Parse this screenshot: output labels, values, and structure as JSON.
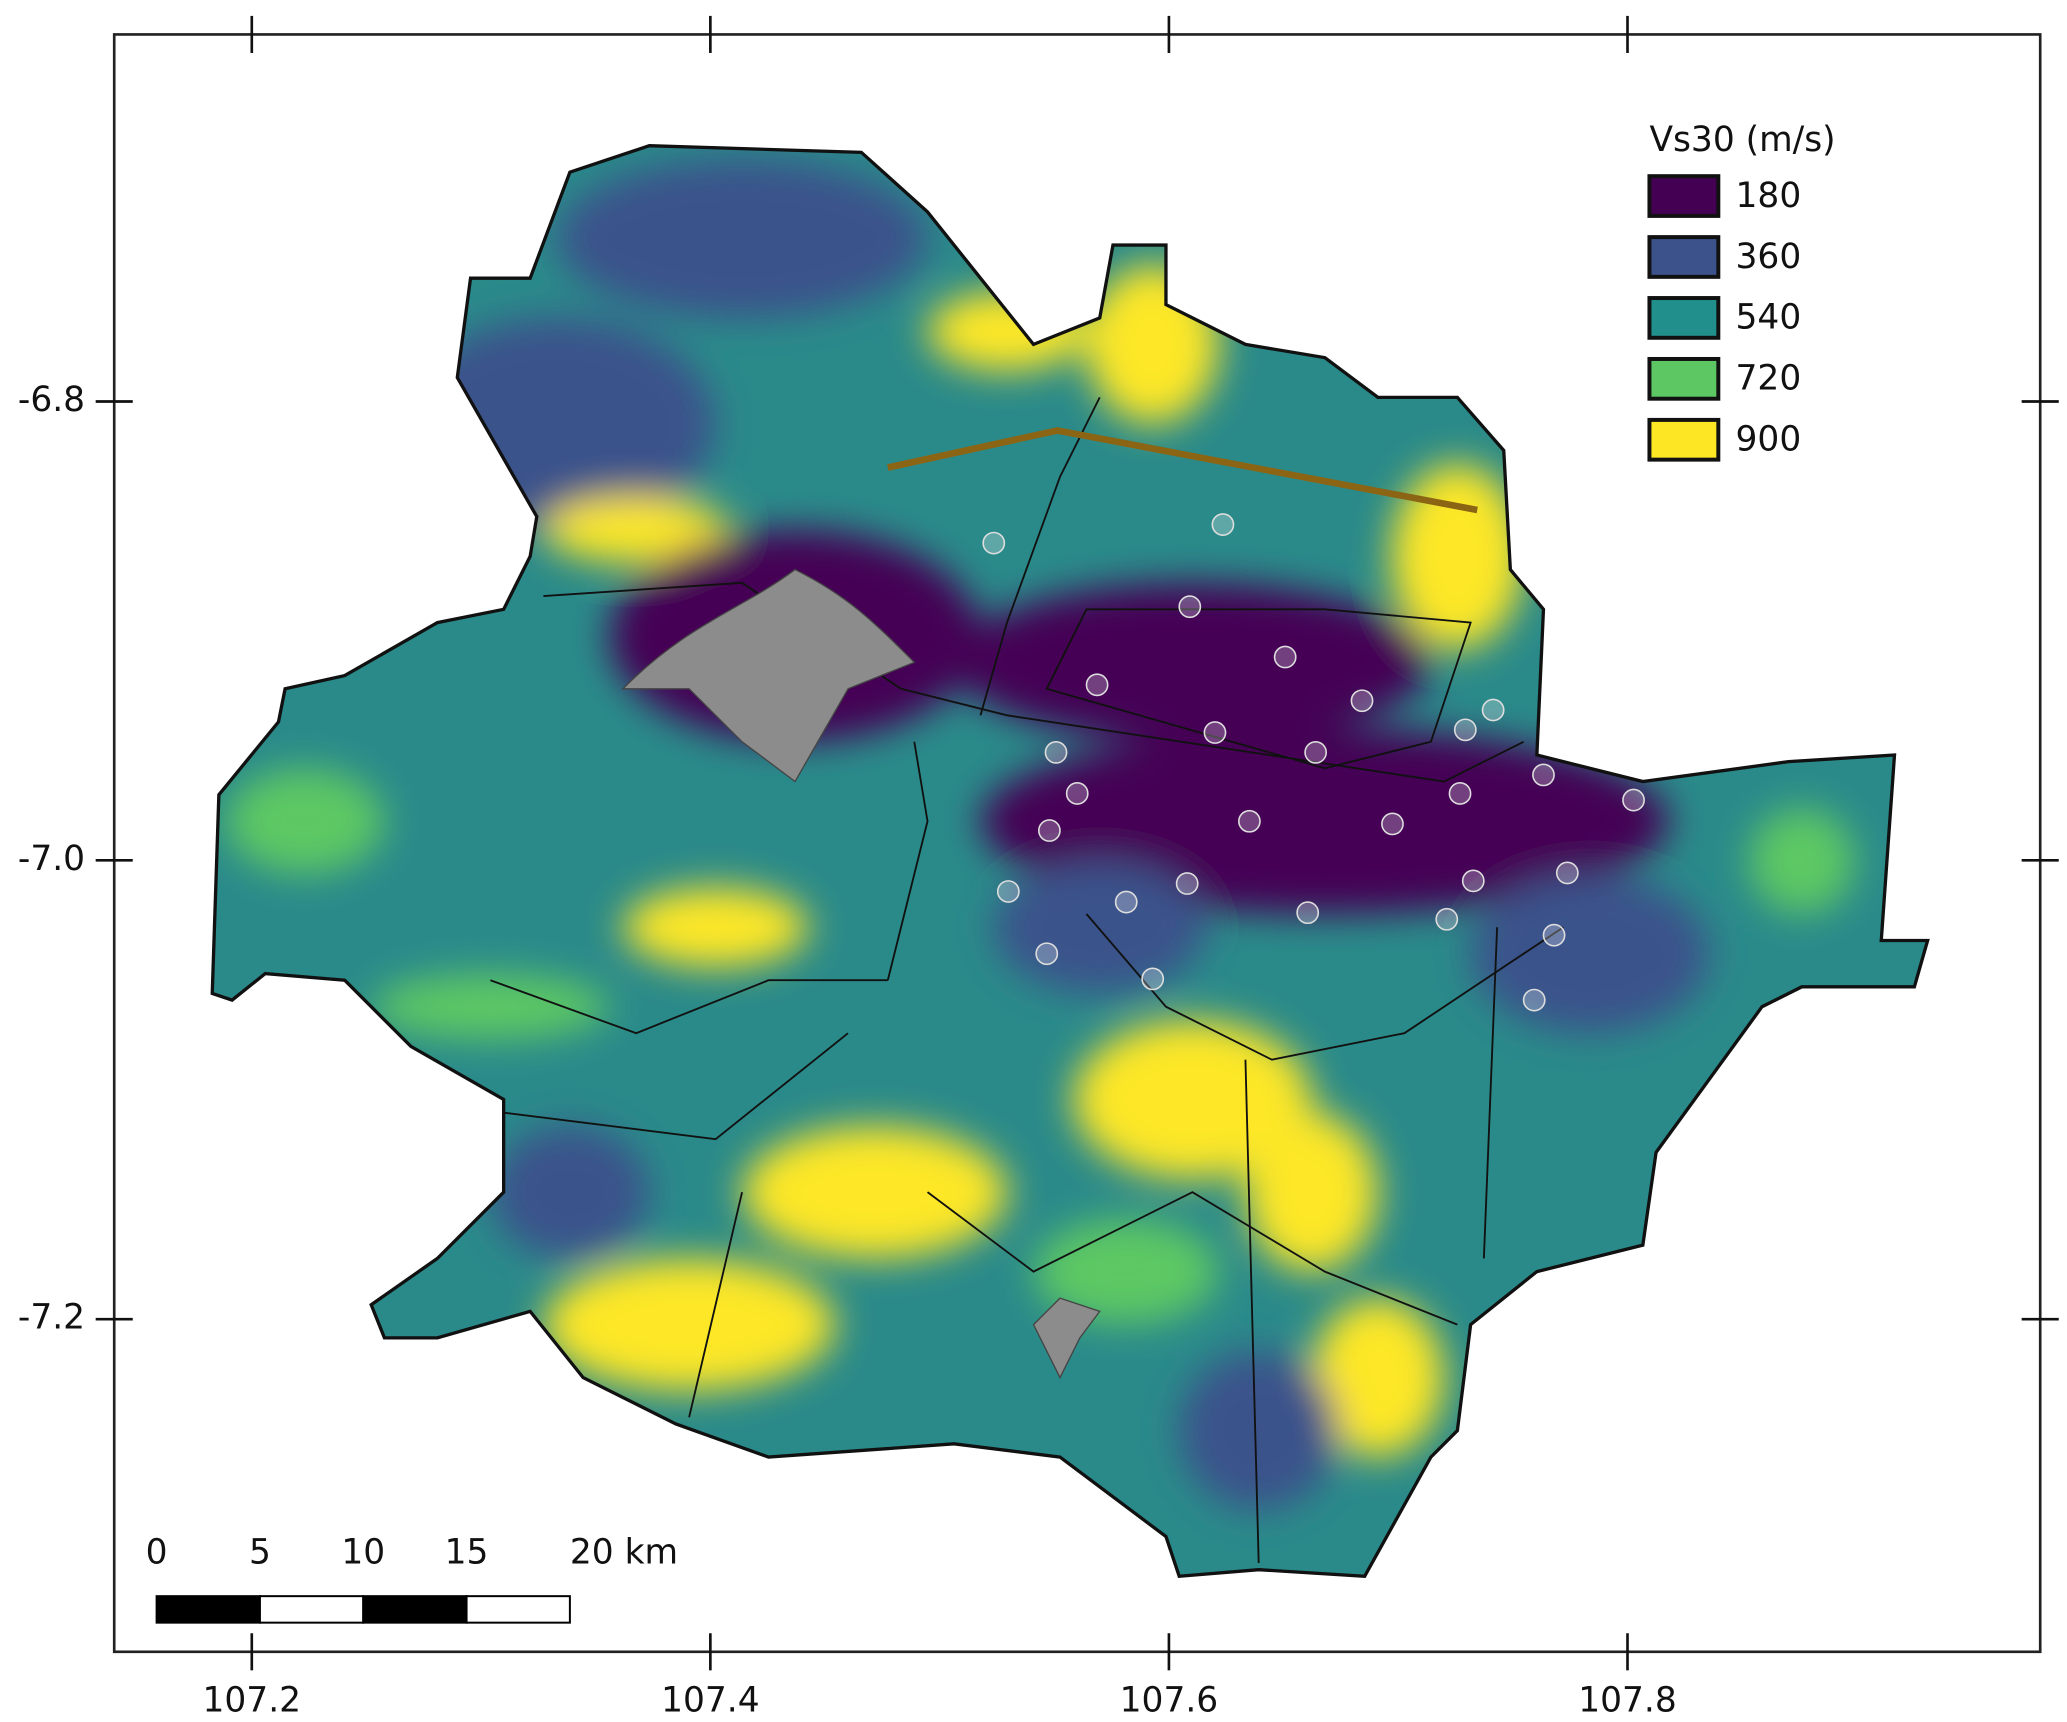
{
  "chart_data": {
    "type": "map",
    "xlim": [
      107.14,
      107.98
    ],
    "ylim": [
      -7.345,
      -6.64
    ],
    "xticks": [
      107.2,
      107.4,
      107.6,
      107.8
    ],
    "yticks": [
      -6.8,
      {
        "value": -7.0,
        "label": "-7.0"
      },
      -7.2
    ],
    "legend": {
      "title": "Vs30 (m/s)",
      "values": [
        180,
        360,
        540,
        720,
        900
      ],
      "colors": [
        "#440154",
        "#3b528b",
        "#21908d",
        "#5dc863",
        "#fde725"
      ]
    },
    "scale_bar": {
      "ticks": [
        0,
        5,
        10,
        15,
        {
          "value": 20,
          "label": "20 km"
        }
      ]
    }
  }
}
